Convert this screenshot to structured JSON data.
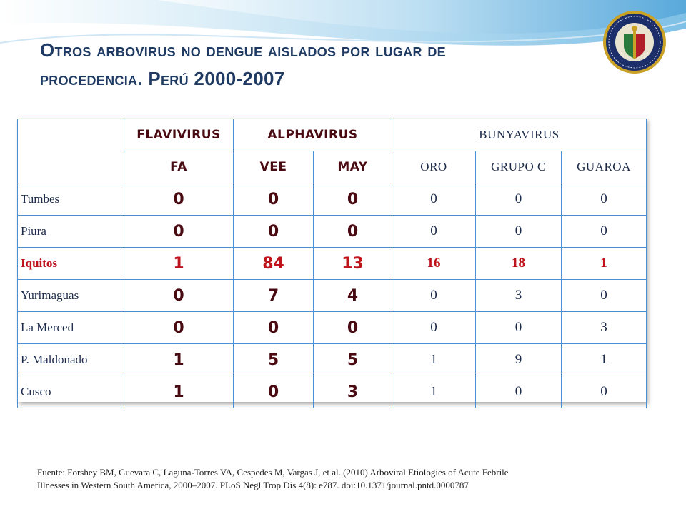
{
  "title": {
    "line1": "Otros arbovirus no dengue aislados por lugar de",
    "line2": "procedencia. Perú 2000-2007"
  },
  "colors": {
    "title": "#1f3b63",
    "border": "#4a8fd1",
    "bold_value": "#4a0a12",
    "highlight_row": "#c0141c"
  },
  "seal": {
    "icon": "naval-medical-research-unit-seal-icon"
  },
  "table": {
    "groups": [
      "FLAVIVIRUS",
      "ALPHAVIRUS",
      "BUNYAVIRUS"
    ],
    "columns": [
      "FA",
      "VEE",
      "MAY",
      "ORO",
      "GRUPO C",
      "GUAROA"
    ],
    "rows": [
      {
        "place": "Tumbes",
        "values": [
          "0",
          "0",
          "0",
          "0",
          "0",
          "0"
        ]
      },
      {
        "place": "Piura",
        "values": [
          "0",
          "0",
          "0",
          "0",
          "0",
          "0"
        ]
      },
      {
        "place": "Iquitos",
        "values": [
          "1",
          "84",
          "13",
          "16",
          "18",
          "1"
        ]
      },
      {
        "place": "Yurimaguas",
        "values": [
          "0",
          "7",
          "4",
          "0",
          "3",
          "0"
        ]
      },
      {
        "place": "La Merced",
        "values": [
          "0",
          "0",
          "0",
          "0",
          "0",
          "3"
        ]
      },
      {
        "place": "P. Maldonado",
        "values": [
          "1",
          "5",
          "5",
          "1",
          "9",
          "1"
        ]
      },
      {
        "place": "Cusco",
        "values": [
          "1",
          "0",
          "3",
          "1",
          "0",
          "0"
        ]
      }
    ]
  },
  "source": {
    "line1": "Fuente: Forshey BM, Guevara C, Laguna-Torres VA, Cespedes M, Vargas J, et al. (2010) Arboviral Etiologies of Acute Febrile",
    "line2": "Illnesses in Western South America, 2000–2007. PLoS Negl Trop Dis 4(8): e787. doi:10.1371/journal.pntd.0000787"
  }
}
